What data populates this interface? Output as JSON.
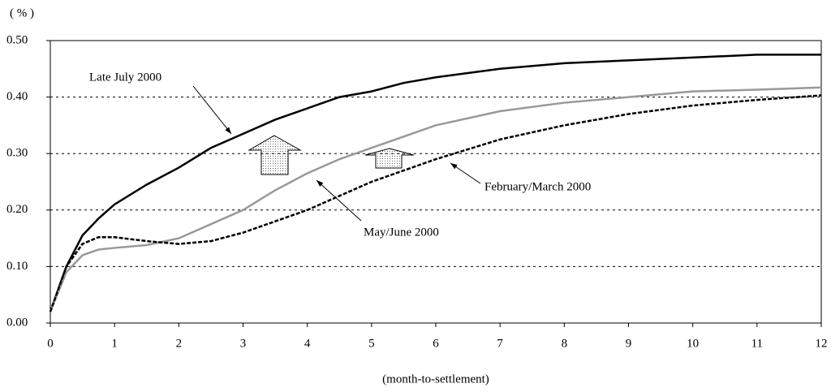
{
  "chart_data": {
    "type": "line",
    "y_label": "( % )",
    "x_label": "(month-to-settlement)",
    "x": [
      0,
      0.25,
      0.5,
      0.75,
      1,
      1.5,
      2,
      2.5,
      3,
      3.5,
      4,
      4.5,
      5,
      5.5,
      6,
      7,
      8,
      9,
      10,
      11,
      12
    ],
    "series": [
      {
        "name": "Late July 2000",
        "color": "#000000",
        "dashed": false,
        "values": [
          0.02,
          0.1,
          0.155,
          0.185,
          0.21,
          0.245,
          0.275,
          0.31,
          0.335,
          0.36,
          0.38,
          0.4,
          0.41,
          0.425,
          0.435,
          0.45,
          0.46,
          0.465,
          0.47,
          0.475,
          0.475
        ]
      },
      {
        "name": "May/June 2000",
        "color": "#999999",
        "dashed": false,
        "values": [
          0.02,
          0.09,
          0.12,
          0.13,
          0.133,
          0.138,
          0.15,
          0.175,
          0.2,
          0.235,
          0.265,
          0.29,
          0.31,
          0.33,
          0.35,
          0.375,
          0.39,
          0.4,
          0.41,
          0.413,
          0.417
        ]
      },
      {
        "name": "February/March 2000",
        "color": "#000000",
        "dashed": true,
        "values": [
          0.02,
          0.1,
          0.14,
          0.152,
          0.152,
          0.145,
          0.14,
          0.145,
          0.16,
          0.18,
          0.2,
          0.225,
          0.25,
          0.27,
          0.29,
          0.325,
          0.35,
          0.37,
          0.385,
          0.395,
          0.403
        ]
      }
    ],
    "xlim": [
      0,
      12
    ],
    "xticks": [
      0,
      1,
      2,
      3,
      4,
      5,
      6,
      7,
      8,
      9,
      10,
      11,
      12
    ],
    "ylim": [
      0,
      0.5
    ],
    "yticks": [
      {
        "value": 0,
        "label": "0.00"
      },
      {
        "value": 0.1,
        "label": "0.10"
      },
      {
        "value": 0.2,
        "label": "0.20"
      },
      {
        "value": 0.3,
        "label": "0.30"
      },
      {
        "value": 0.4,
        "label": "0.40"
      },
      {
        "value": 0.5,
        "label": "0.50"
      }
    ],
    "grid": true
  }
}
